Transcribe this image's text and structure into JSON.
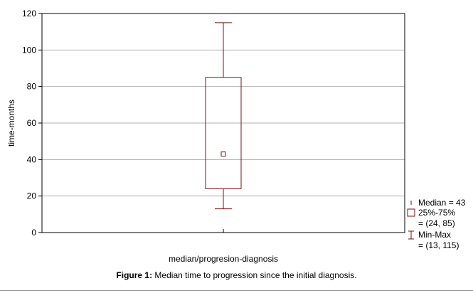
{
  "chart_data": {
    "type": "boxplot",
    "xlabel": "median/progresion-diagnosis",
    "ylabel": "time-months",
    "ylim": [
      0,
      120
    ],
    "yticks": [
      0,
      20,
      40,
      60,
      80,
      100,
      120
    ],
    "grid": true,
    "legend_position": "right",
    "box": {
      "min": 13,
      "q1": 24,
      "median": 43,
      "q3": 85,
      "max": 115
    },
    "legend": [
      {
        "symbol": "median-marker",
        "lines": [
          "Median = 43"
        ]
      },
      {
        "symbol": "box",
        "lines": [
          "25%-75%",
          "= (24, 85)"
        ]
      },
      {
        "symbol": "whisker",
        "lines": [
          "Min-Max",
          "= (13, 115)"
        ]
      }
    ],
    "colors": {
      "box": "#7a1010",
      "grid": "#b0b0b0",
      "frame": "#000000"
    }
  },
  "caption": {
    "label": "Figure 1:",
    "text": " Median time to progression since the initial diagnosis."
  }
}
